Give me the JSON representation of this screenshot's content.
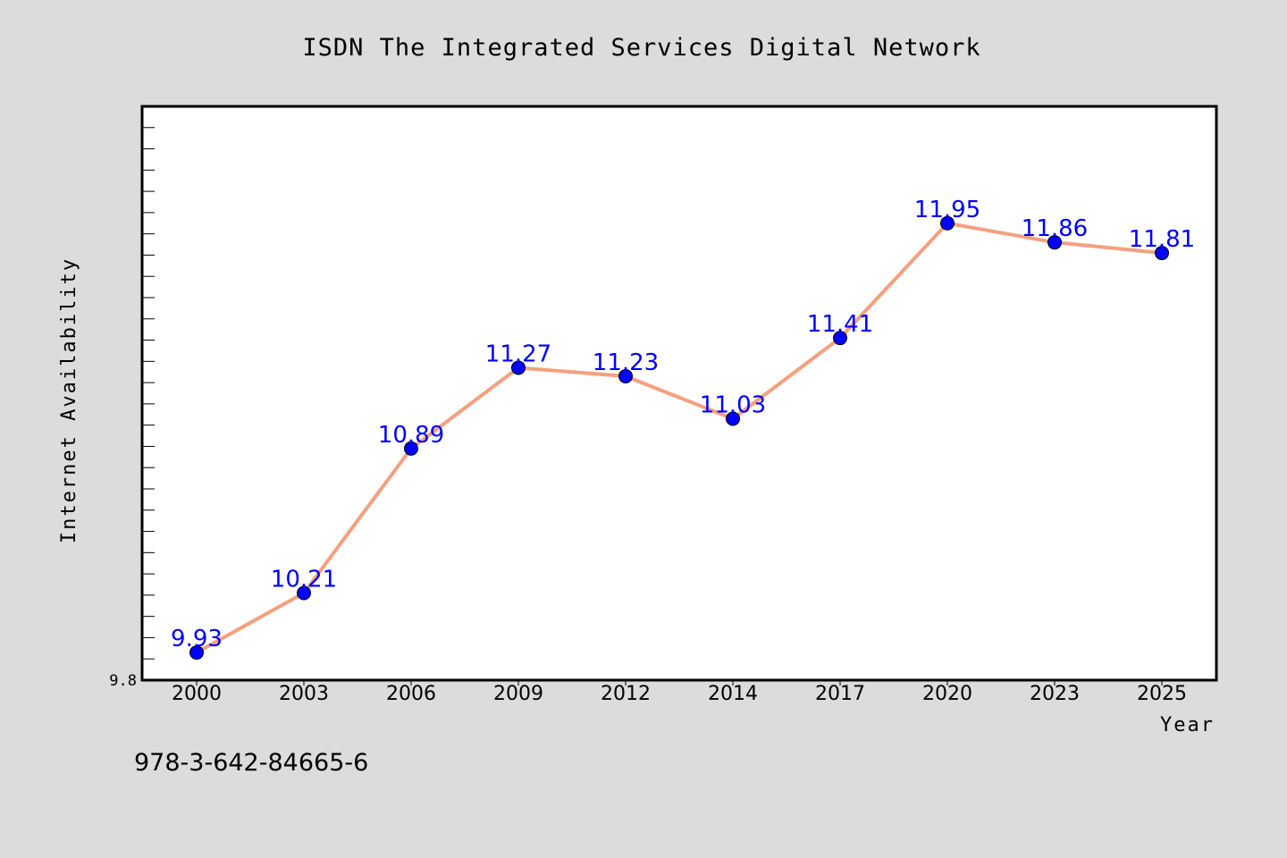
{
  "chart_data": {
    "type": "line",
    "title": "ISDN The Integrated Services Digital Network",
    "xlabel": "Year",
    "ylabel": "Internet Availability",
    "categories": [
      "2000",
      "2003",
      "2006",
      "2009",
      "2012",
      "2014",
      "2017",
      "2020",
      "2023",
      "2025"
    ],
    "series": [
      {
        "values": [
          9.93,
          10.21,
          10.89,
          11.27,
          11.23,
          11.03,
          11.41,
          11.95,
          11.86,
          11.81
        ],
        "labels": [
          "9.93",
          "10.21",
          "10.89",
          "11.27",
          "11.23",
          "11.03",
          "11.41",
          "11.95",
          "11.86",
          "11.81"
        ]
      }
    ],
    "ylim": [
      9.8,
      12.4
    ],
    "yticks_labeled": [
      "9.8"
    ],
    "grid": false,
    "line_color": "#f4a07f",
    "marker_color": "#0000ff",
    "label_color": "#0000ff",
    "background_color": "#dcdcdc",
    "plot_background": "#ffffff"
  },
  "footnote": "978-3-642-84665-6"
}
